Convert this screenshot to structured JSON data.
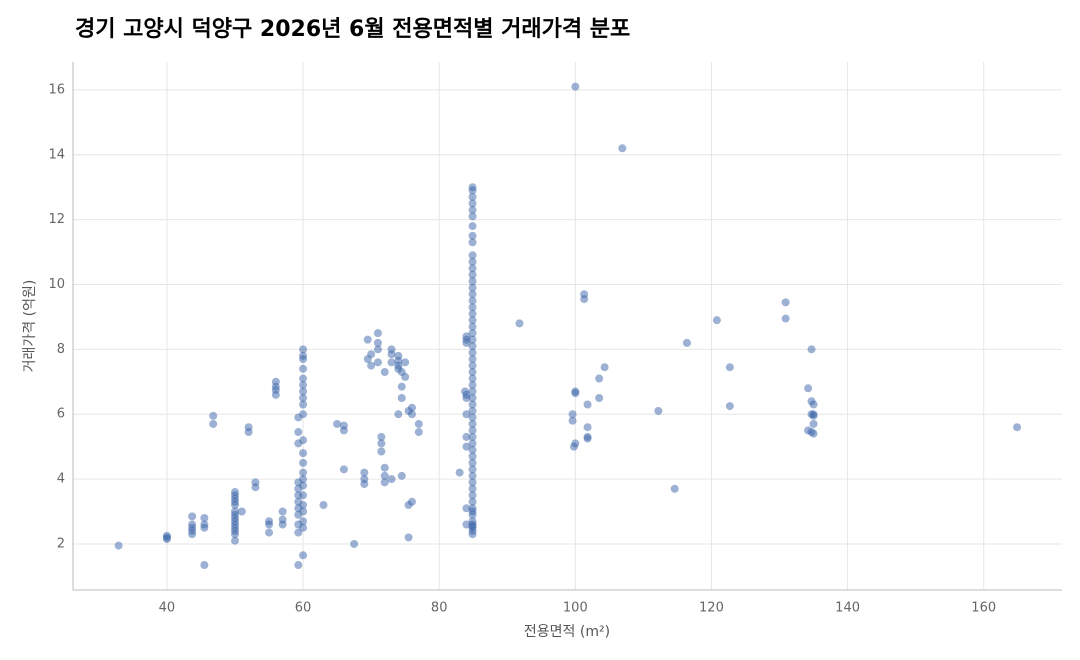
{
  "chart_data": {
    "type": "scatter",
    "title": "경기 고양시 덕양구 2026년 6월 전용면적별 거래가격 분포",
    "x_label": "전용면적 (m²)",
    "y_label": "거래가격 (억원)",
    "color": "#3a63a8",
    "grid": true,
    "xlim": [
      26.2,
      171.5
    ],
    "ylim": [
      0.58,
      16.86
    ],
    "xticks": [
      40,
      60,
      80,
      100,
      120,
      140,
      160
    ],
    "yticks": [
      2,
      4,
      6,
      8,
      10,
      12,
      14,
      16
    ],
    "x": [
      32.9,
      40,
      40,
      40,
      43.7,
      43.7,
      43.7,
      43.7,
      43.7,
      45.5,
      45.5,
      45.5,
      45.5,
      46.8,
      46.8,
      50,
      50,
      50,
      50,
      50,
      50,
      50,
      50,
      50,
      50,
      50,
      50,
      50,
      50,
      51,
      52,
      52,
      53,
      53,
      55,
      55,
      55,
      56,
      56,
      56,
      56,
      57,
      57,
      57,
      59.3,
      59.3,
      59.3,
      59.3,
      59.3,
      59.3,
      59.3,
      59.3,
      59.3,
      59.3,
      59.3,
      59.3,
      60,
      60,
      60,
      60,
      60,
      60,
      60,
      60,
      60,
      60,
      60,
      60,
      60,
      60,
      60,
      60,
      60,
      60,
      60,
      60,
      60,
      60,
      63,
      65,
      66,
      66,
      66,
      67.5,
      69,
      69,
      69,
      69.5,
      69.5,
      70,
      70,
      71,
      71,
      71,
      71,
      71.5,
      71.5,
      71.5,
      72,
      72,
      72,
      72,
      73,
      73,
      73,
      73,
      74,
      74,
      74,
      74,
      74,
      74.5,
      74.5,
      74.5,
      74.5,
      75,
      75,
      75.5,
      75.5,
      75.5,
      76,
      76,
      76,
      77,
      77,
      83,
      84.9,
      84.9,
      84.9,
      84.9,
      84.9,
      84.9,
      84.9,
      84.9,
      84.9,
      84.9,
      84.9,
      84.9,
      84.9,
      84.9,
      84.9,
      84.9,
      84.9,
      84.9,
      84.9,
      84.9,
      84.9,
      84.9,
      84.9,
      84.9,
      84.9,
      84.9,
      84.9,
      84.9,
      84.9,
      84.9,
      84.9,
      84.9,
      84.9,
      84.9,
      84.9,
      84.9,
      84.9,
      84.9,
      84.9,
      84.9,
      84.9,
      84.9,
      84.9,
      84.9,
      84.9,
      84.9,
      84.9,
      84.9,
      84.9,
      84.9,
      84.9,
      84.9,
      84.9,
      84.9,
      84.9,
      84.9,
      84.9,
      84,
      84,
      84,
      84,
      84,
      84,
      84,
      84,
      84,
      84,
      83.8,
      91.8,
      99.6,
      99.6,
      99.8,
      100,
      100,
      100,
      100,
      101.3,
      101.3,
      101.8,
      101.8,
      101.8,
      101.8,
      103.5,
      103.5,
      104.3,
      106.9,
      112.2,
      114.6,
      116.4,
      120.8,
      122.7,
      122.7,
      130.9,
      130.9,
      134.2,
      134.2,
      134.7,
      134.7,
      134.7,
      134.7,
      135,
      135,
      135,
      135,
      135,
      164.9
    ],
    "y": [
      1.95,
      2.2,
      2.25,
      2.15,
      2.3,
      2.5,
      2.6,
      2.85,
      2.4,
      2.8,
      2.6,
      2.5,
      1.35,
      5.95,
      5.7,
      2.1,
      2.3,
      2.4,
      2.5,
      2.6,
      2.7,
      2.8,
      2.9,
      3.0,
      3.2,
      3.3,
      3.4,
      3.5,
      3.6,
      3.0,
      5.6,
      5.45,
      3.9,
      3.75,
      2.7,
      2.6,
      2.35,
      7.0,
      6.85,
      6.75,
      6.6,
      2.75,
      2.6,
      3.0,
      1.35,
      2.35,
      2.6,
      2.9,
      3.1,
      3.3,
      3.5,
      3.7,
      3.9,
      5.45,
      5.9,
      5.1,
      1.65,
      2.5,
      2.7,
      3.0,
      3.2,
      3.5,
      3.8,
      4.0,
      4.2,
      4.5,
      4.8,
      5.2,
      6.0,
      6.3,
      6.5,
      6.7,
      6.9,
      7.1,
      7.4,
      7.7,
      7.8,
      8.0,
      3.2,
      5.7,
      5.65,
      5.5,
      4.3,
      2.0,
      4.2,
      4.0,
      3.85,
      8.3,
      7.7,
      7.85,
      7.5,
      8.5,
      8.2,
      8.0,
      7.6,
      5.3,
      5.1,
      4.85,
      4.35,
      4.1,
      3.9,
      7.3,
      8.0,
      7.85,
      7.6,
      4.0,
      7.8,
      7.65,
      7.5,
      6.0,
      7.4,
      7.3,
      6.85,
      6.5,
      4.1,
      7.6,
      7.15,
      2.2,
      3.2,
      6.1,
      6.2,
      6.0,
      3.3,
      5.7,
      5.45,
      4.2,
      2.3,
      2.4,
      2.5,
      2.55,
      2.6,
      2.7,
      2.9,
      3.0,
      3.1,
      3.3,
      3.5,
      3.7,
      3.9,
      4.1,
      4.3,
      4.5,
      4.7,
      4.9,
      5.1,
      5.3,
      5.5,
      5.7,
      5.9,
      6.1,
      6.3,
      6.5,
      6.7,
      6.9,
      7.1,
      7.3,
      7.5,
      7.7,
      7.9,
      8.1,
      8.3,
      8.5,
      8.7,
      8.9,
      9.1,
      9.3,
      9.5,
      9.7,
      9.9,
      10.1,
      10.3,
      10.5,
      10.7,
      10.9,
      11.3,
      11.5,
      11.8,
      12.1,
      12.3,
      12.5,
      12.7,
      12.9,
      13.0,
      8.2,
      8.3,
      6.6,
      6.5,
      5.3,
      3.1,
      2.6,
      5.0,
      8.4,
      6.0,
      6.7,
      8.8,
      6.0,
      5.8,
      5.0,
      16.1,
      6.7,
      6.65,
      5.1,
      9.7,
      9.55,
      6.3,
      5.6,
      5.3,
      5.25,
      6.5,
      7.1,
      7.45,
      14.2,
      6.1,
      3.7,
      8.2,
      8.9,
      7.45,
      6.25,
      9.45,
      8.95,
      6.8,
      5.5,
      8.0,
      6.4,
      6.0,
      5.45,
      6.3,
      6.0,
      5.95,
      5.7,
      5.4,
      5.6
    ]
  }
}
